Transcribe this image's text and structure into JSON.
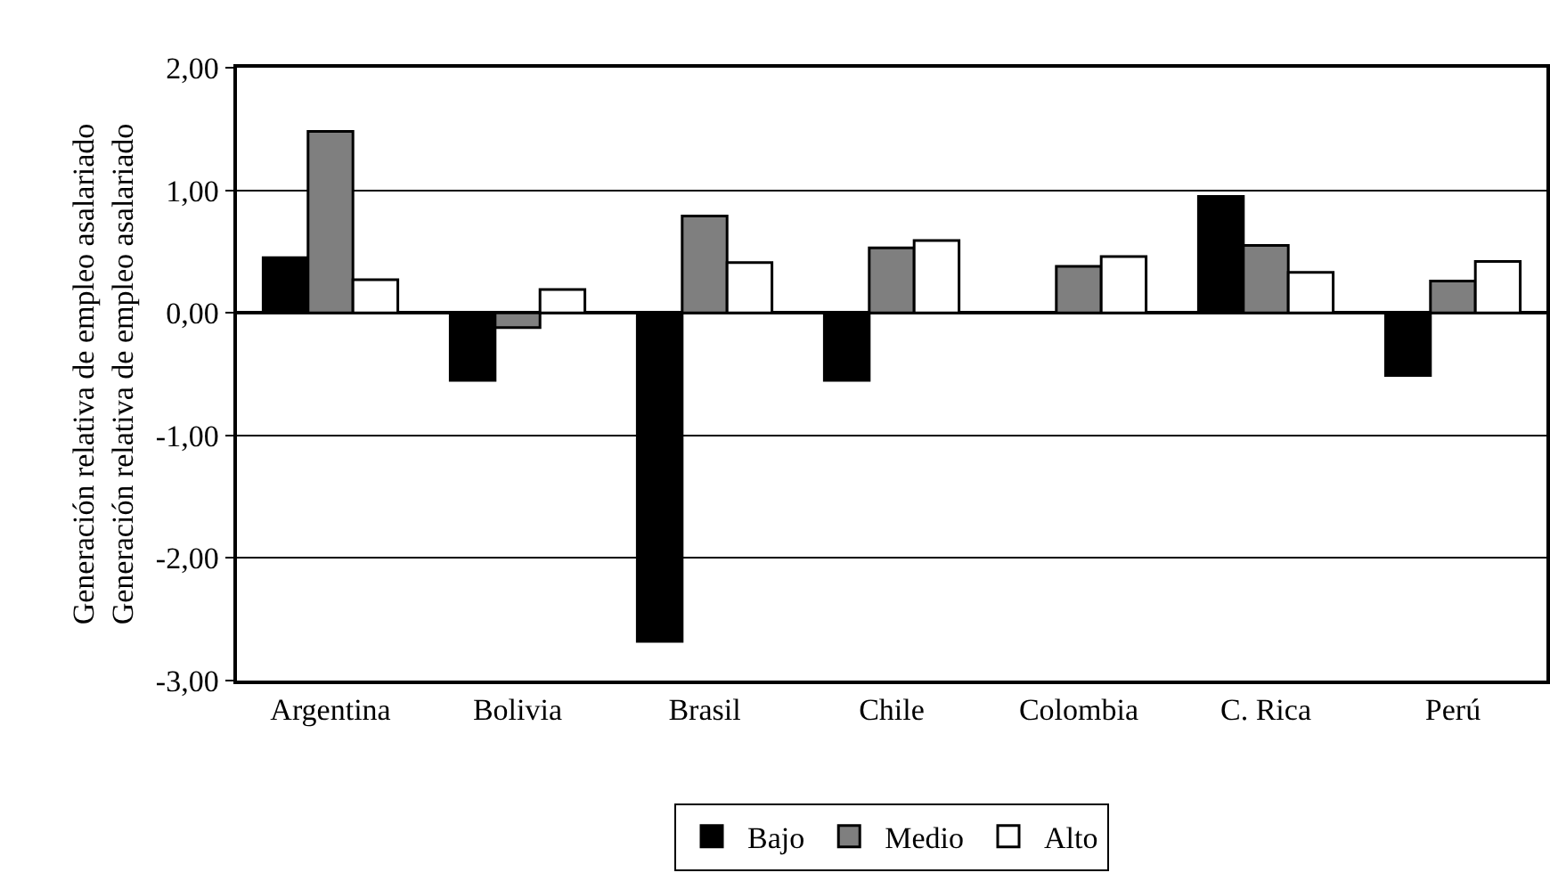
{
  "chart_data": {
    "type": "bar",
    "ylabel": "Generación relativa de empleo asalariado\nGeneración relativa de empleo asalariado",
    "categories": [
      "Argentina",
      "Bolivia",
      "Brasil",
      "Chile",
      "Colombia",
      "C. Rica",
      "Perú"
    ],
    "series": [
      {
        "name": "Bajo",
        "color": "#000000",
        "values": [
          0.45,
          -0.55,
          -2.68,
          -0.55,
          null,
          0.95,
          -0.51
        ]
      },
      {
        "name": "Medio",
        "color": "#7f7f7f",
        "values": [
          1.48,
          -0.12,
          0.79,
          0.53,
          0.38,
          0.55,
          0.26
        ]
      },
      {
        "name": "Alto",
        "color": "#ffffff",
        "values": [
          0.27,
          0.19,
          0.41,
          0.59,
          0.46,
          0.33,
          0.42
        ]
      }
    ],
    "ylim": [
      -3,
      2
    ],
    "yticks": [
      {
        "value": -3,
        "label": "-3,00"
      },
      {
        "value": -2,
        "label": "-2,00"
      },
      {
        "value": -1,
        "label": "-1,00"
      },
      {
        "value": 0,
        "label": "0,00"
      },
      {
        "value": 1,
        "label": "1,00"
      },
      {
        "value": 2,
        "label": "2,00"
      }
    ],
    "grid": "y",
    "legend": "bottom"
  }
}
